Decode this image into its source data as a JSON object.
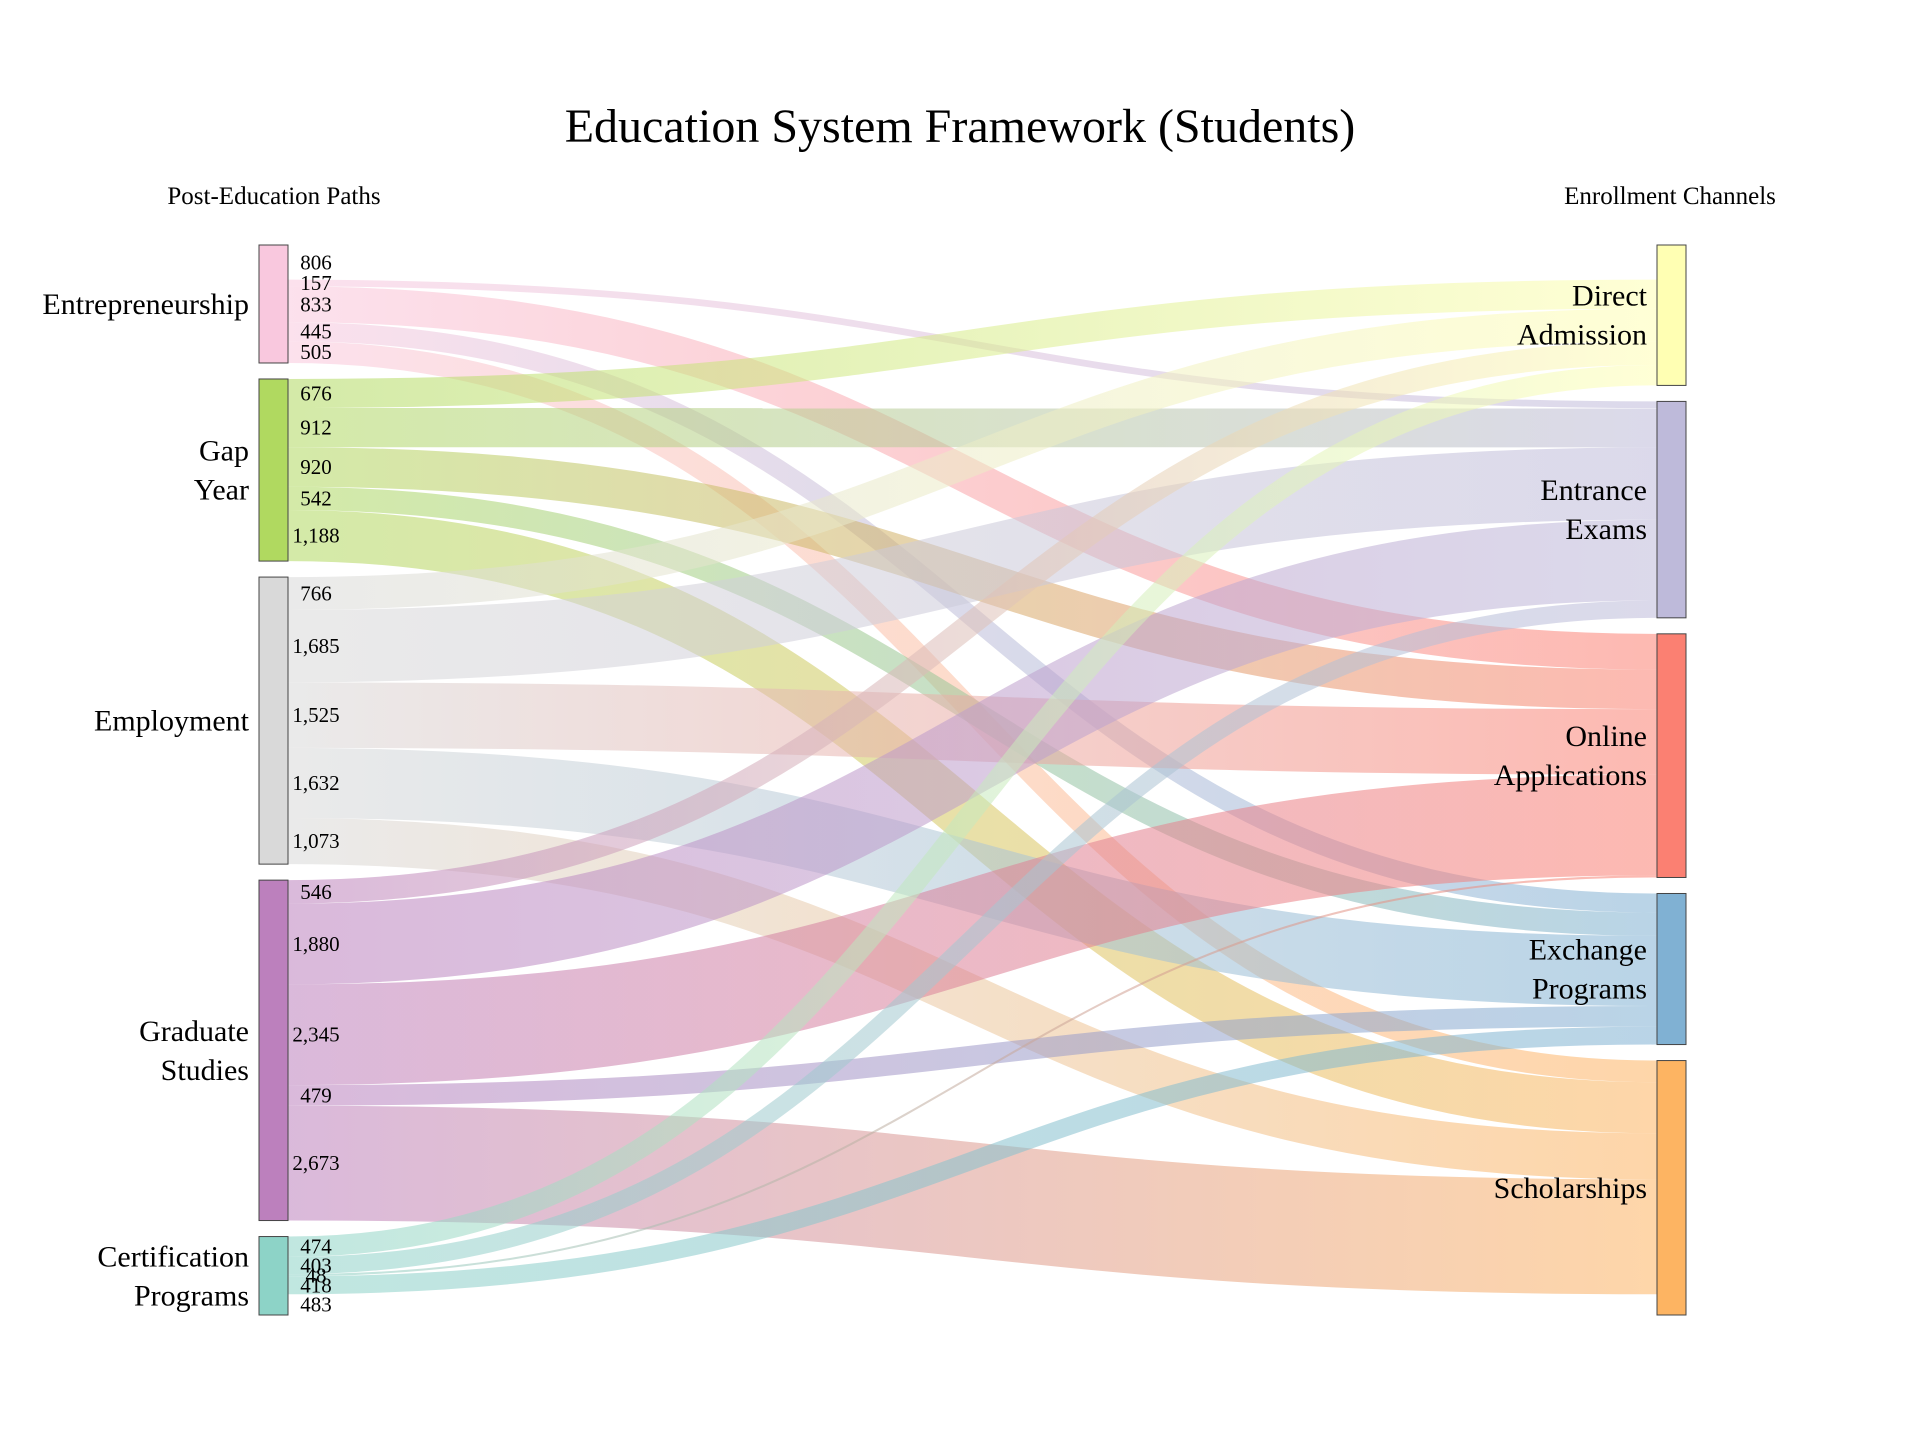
{
  "chart_data": {
    "type": "sankey",
    "title": "Education System Framework (Students)",
    "left_header": "Post-Education Paths",
    "right_header": "Enrollment Channels",
    "sources": [
      {
        "id": "entrepreneurship",
        "label": [
          "Entrepreneurship"
        ],
        "color": "#f9c8de"
      },
      {
        "id": "gap_year",
        "label": [
          "Gap",
          "Year"
        ],
        "color": "#b0d960"
      },
      {
        "id": "employment",
        "label": [
          "Employment"
        ],
        "color": "#d9d9d9"
      },
      {
        "id": "graduate_studies",
        "label": [
          "Graduate",
          "Studies"
        ],
        "color": "#bc80bd"
      },
      {
        "id": "certification_programs",
        "label": [
          "Certification",
          "Programs"
        ],
        "color": "#8dd3c7"
      }
    ],
    "targets": [
      {
        "id": "direct_admission",
        "label": [
          "Direct",
          "Admission"
        ],
        "color": "#ffffb3"
      },
      {
        "id": "entrance_exams",
        "label": [
          "Entrance",
          "Exams"
        ],
        "color": "#bebada"
      },
      {
        "id": "online_applications",
        "label": [
          "Online",
          "Applications"
        ],
        "color": "#fb8072"
      },
      {
        "id": "exchange_programs",
        "label": [
          "Exchange",
          "Programs"
        ],
        "color": "#80b1d3"
      },
      {
        "id": "scholarships",
        "label": [
          "Scholarships"
        ],
        "color": "#fdb462"
      }
    ],
    "flows": [
      {
        "source": "entrepreneurship",
        "target": "direct_admission",
        "value": 806,
        "label": "806"
      },
      {
        "source": "entrepreneurship",
        "target": "entrance_exams",
        "value": 157,
        "label": "157"
      },
      {
        "source": "entrepreneurship",
        "target": "online_applications",
        "value": 833,
        "label": "833"
      },
      {
        "source": "entrepreneurship",
        "target": "exchange_programs",
        "value": 445,
        "label": "445"
      },
      {
        "source": "entrepreneurship",
        "target": "scholarships",
        "value": 505,
        "label": "505"
      },
      {
        "source": "gap_year",
        "target": "direct_admission",
        "value": 676,
        "label": "676"
      },
      {
        "source": "gap_year",
        "target": "entrance_exams",
        "value": 912,
        "label": "912"
      },
      {
        "source": "gap_year",
        "target": "online_applications",
        "value": 920,
        "label": "920"
      },
      {
        "source": "gap_year",
        "target": "exchange_programs",
        "value": 542,
        "label": "542"
      },
      {
        "source": "gap_year",
        "target": "scholarships",
        "value": 1188,
        "label": "1,188"
      },
      {
        "source": "employment",
        "target": "direct_admission",
        "value": 766,
        "label": "766"
      },
      {
        "source": "employment",
        "target": "entrance_exams",
        "value": 1685,
        "label": "1,685"
      },
      {
        "source": "employment",
        "target": "online_applications",
        "value": 1525,
        "label": "1,525"
      },
      {
        "source": "employment",
        "target": "exchange_programs",
        "value": 1632,
        "label": "1,632"
      },
      {
        "source": "employment",
        "target": "scholarships",
        "value": 1073,
        "label": "1,073"
      },
      {
        "source": "graduate_studies",
        "target": "direct_admission",
        "value": 546,
        "label": "546"
      },
      {
        "source": "graduate_studies",
        "target": "entrance_exams",
        "value": 1880,
        "label": "1,880"
      },
      {
        "source": "graduate_studies",
        "target": "online_applications",
        "value": 2345,
        "label": "2,345"
      },
      {
        "source": "graduate_studies",
        "target": "exchange_programs",
        "value": 479,
        "label": "479"
      },
      {
        "source": "graduate_studies",
        "target": "scholarships",
        "value": 2673,
        "label": "2,673"
      },
      {
        "source": "certification_programs",
        "target": "direct_admission",
        "value": 474,
        "label": "474"
      },
      {
        "source": "certification_programs",
        "target": "entrance_exams",
        "value": 403,
        "label": "403"
      },
      {
        "source": "certification_programs",
        "target": "online_applications",
        "value": 48,
        "label": "48"
      },
      {
        "source": "certification_programs",
        "target": "exchange_programs",
        "value": 418,
        "label": "418"
      },
      {
        "source": "certification_programs",
        "target": "scholarships",
        "value": 483,
        "label": "483"
      }
    ]
  }
}
